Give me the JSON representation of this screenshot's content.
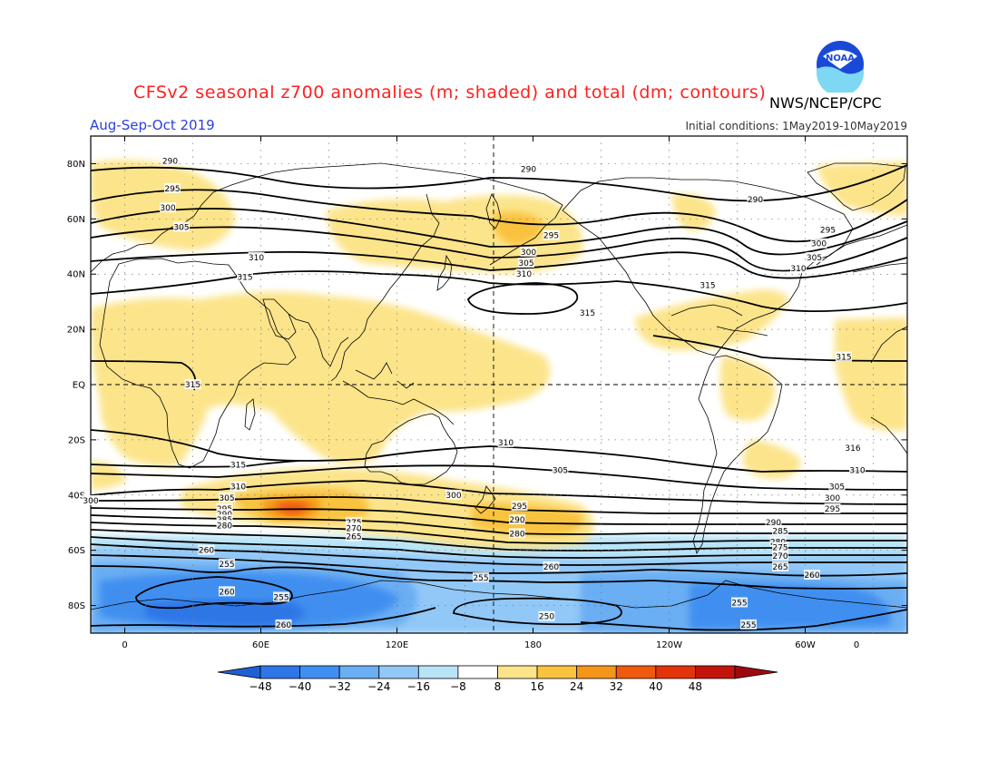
{
  "header": {
    "title": "CFSv2 seasonal z700 anomalies (m; shaded) and total (dm; contours)",
    "agency": "NWS/NCEP/CPC",
    "season": "Aug-Sep-Oct 2019",
    "initial_conditions": "Initial conditions: 1May2019-10May2019",
    "logo_text": "NOAA"
  },
  "map": {
    "lat_labels": [
      "80N",
      "60N",
      "40N",
      "20N",
      "EQ",
      "20S",
      "40S",
      "60S",
      "80S"
    ],
    "lon_labels": [
      "0",
      "60E",
      "120E",
      "180",
      "120W",
      "60W",
      "0"
    ],
    "projection": "cylindrical equidistant, 345W-15E",
    "grid": "dotted 30x20 degree",
    "contour_labels": [
      {
        "value": "290",
        "lon": 20,
        "lat": 81
      },
      {
        "value": "290",
        "lon": 178,
        "lat": 78
      },
      {
        "value": "290",
        "lon": -82,
        "lat": 67
      },
      {
        "value": "295",
        "lon": 21,
        "lat": 71
      },
      {
        "value": "295",
        "lon": 188,
        "lat": 54
      },
      {
        "value": "295",
        "lon": -50,
        "lat": 56
      },
      {
        "value": "300",
        "lon": 19,
        "lat": 64
      },
      {
        "value": "300",
        "lon": 178,
        "lat": 48
      },
      {
        "value": "300",
        "lon": -54,
        "lat": 51
      },
      {
        "value": "305",
        "lon": 25,
        "lat": 57
      },
      {
        "value": "305",
        "lon": 177,
        "lat": 44
      },
      {
        "value": "305",
        "lon": -56,
        "lat": 46
      },
      {
        "value": "310",
        "lon": 58,
        "lat": 46
      },
      {
        "value": "310",
        "lon": 176,
        "lat": 40
      },
      {
        "value": "310",
        "lon": -63,
        "lat": 42
      },
      {
        "value": "315",
        "lon": 53,
        "lat": 39
      },
      {
        "value": "315",
        "lon": -103,
        "lat": 36
      },
      {
        "value": "315",
        "lon": 204,
        "lat": 26
      },
      {
        "value": "315",
        "lon": -43,
        "lat": 10
      },
      {
        "value": "315",
        "lon": 30,
        "lat": 0
      },
      {
        "value": "316",
        "lon": -39,
        "lat": -23
      },
      {
        "value": "310",
        "lon": 168,
        "lat": -21
      },
      {
        "value": "310",
        "lon": -37,
        "lat": -31
      },
      {
        "value": "305",
        "lon": -46,
        "lat": -37
      },
      {
        "value": "300",
        "lon": -48,
        "lat": -41
      },
      {
        "value": "295",
        "lon": -48,
        "lat": -45
      },
      {
        "value": "315",
        "lon": 50,
        "lat": -29
      },
      {
        "value": "310",
        "lon": 50,
        "lat": -37
      },
      {
        "value": "305",
        "lon": 45,
        "lat": -41
      },
      {
        "value": "300",
        "lon": -15,
        "lat": -42
      },
      {
        "value": "295",
        "lon": 44,
        "lat": -45
      },
      {
        "value": "290",
        "lon": 44,
        "lat": -47
      },
      {
        "value": "285",
        "lon": 44,
        "lat": -49
      },
      {
        "value": "280",
        "lon": 44,
        "lat": -51
      },
      {
        "value": "305",
        "lon": 192,
        "lat": -31
      },
      {
        "value": "300",
        "lon": 145,
        "lat": -40
      },
      {
        "value": "295",
        "lon": 174,
        "lat": -44
      },
      {
        "value": "290",
        "lon": 173,
        "lat": -49
      },
      {
        "value": "280",
        "lon": 173,
        "lat": -54
      },
      {
        "value": "275",
        "lon": 101,
        "lat": -50
      },
      {
        "value": "270",
        "lon": 101,
        "lat": -52
      },
      {
        "value": "265",
        "lon": 101,
        "lat": -55
      },
      {
        "value": "290",
        "lon": -74,
        "lat": -50
      },
      {
        "value": "285",
        "lon": -71,
        "lat": -53
      },
      {
        "value": "280",
        "lon": -72,
        "lat": -57
      },
      {
        "value": "275",
        "lon": -71,
        "lat": -59
      },
      {
        "value": "270",
        "lon": -71,
        "lat": -62
      },
      {
        "value": "265",
        "lon": -71,
        "lat": -66
      },
      {
        "value": "260",
        "lon": -57,
        "lat": -69
      },
      {
        "value": "260",
        "lon": 36,
        "lat": -60
      },
      {
        "value": "260",
        "lon": 188,
        "lat": -66
      },
      {
        "value": "260",
        "lon": 45,
        "lat": -75
      },
      {
        "value": "255",
        "lon": 45,
        "lat": -65
      },
      {
        "value": "255",
        "lon": 69,
        "lat": -77
      },
      {
        "value": "255",
        "lon": 157,
        "lat": -70
      },
      {
        "value": "255",
        "lon": -89,
        "lat": -79
      },
      {
        "value": "255",
        "lon": -85,
        "lat": -87
      },
      {
        "value": "250",
        "lon": 186,
        "lat": -84
      },
      {
        "value": "260",
        "lon": 70,
        "lat": -87
      }
    ]
  },
  "colorbar": {
    "ticks": [
      "−48",
      "−40",
      "−32",
      "−24",
      "−16",
      "−8",
      "8",
      "16",
      "24",
      "32",
      "40",
      "48"
    ],
    "colors": [
      "#1f5fd6",
      "#2e76e6",
      "#3f8ff0",
      "#6aaef3",
      "#92c8f7",
      "#b9e4f8",
      "#ffffff",
      "#fce48a",
      "#f9c33f",
      "#f59519",
      "#f05a0d",
      "#e3330a",
      "#c4130c",
      "#9c0a10"
    ]
  },
  "anomaly_colors": {
    "p8": "#fce48a",
    "p16": "#f9c33f",
    "p24": "#f59519",
    "p32": "#f05a0d",
    "m8": "#b9e4f8",
    "m16": "#92c8f7",
    "m24": "#6aaef3",
    "m32": "#3f8ff0",
    "m40": "#2e76e6"
  }
}
